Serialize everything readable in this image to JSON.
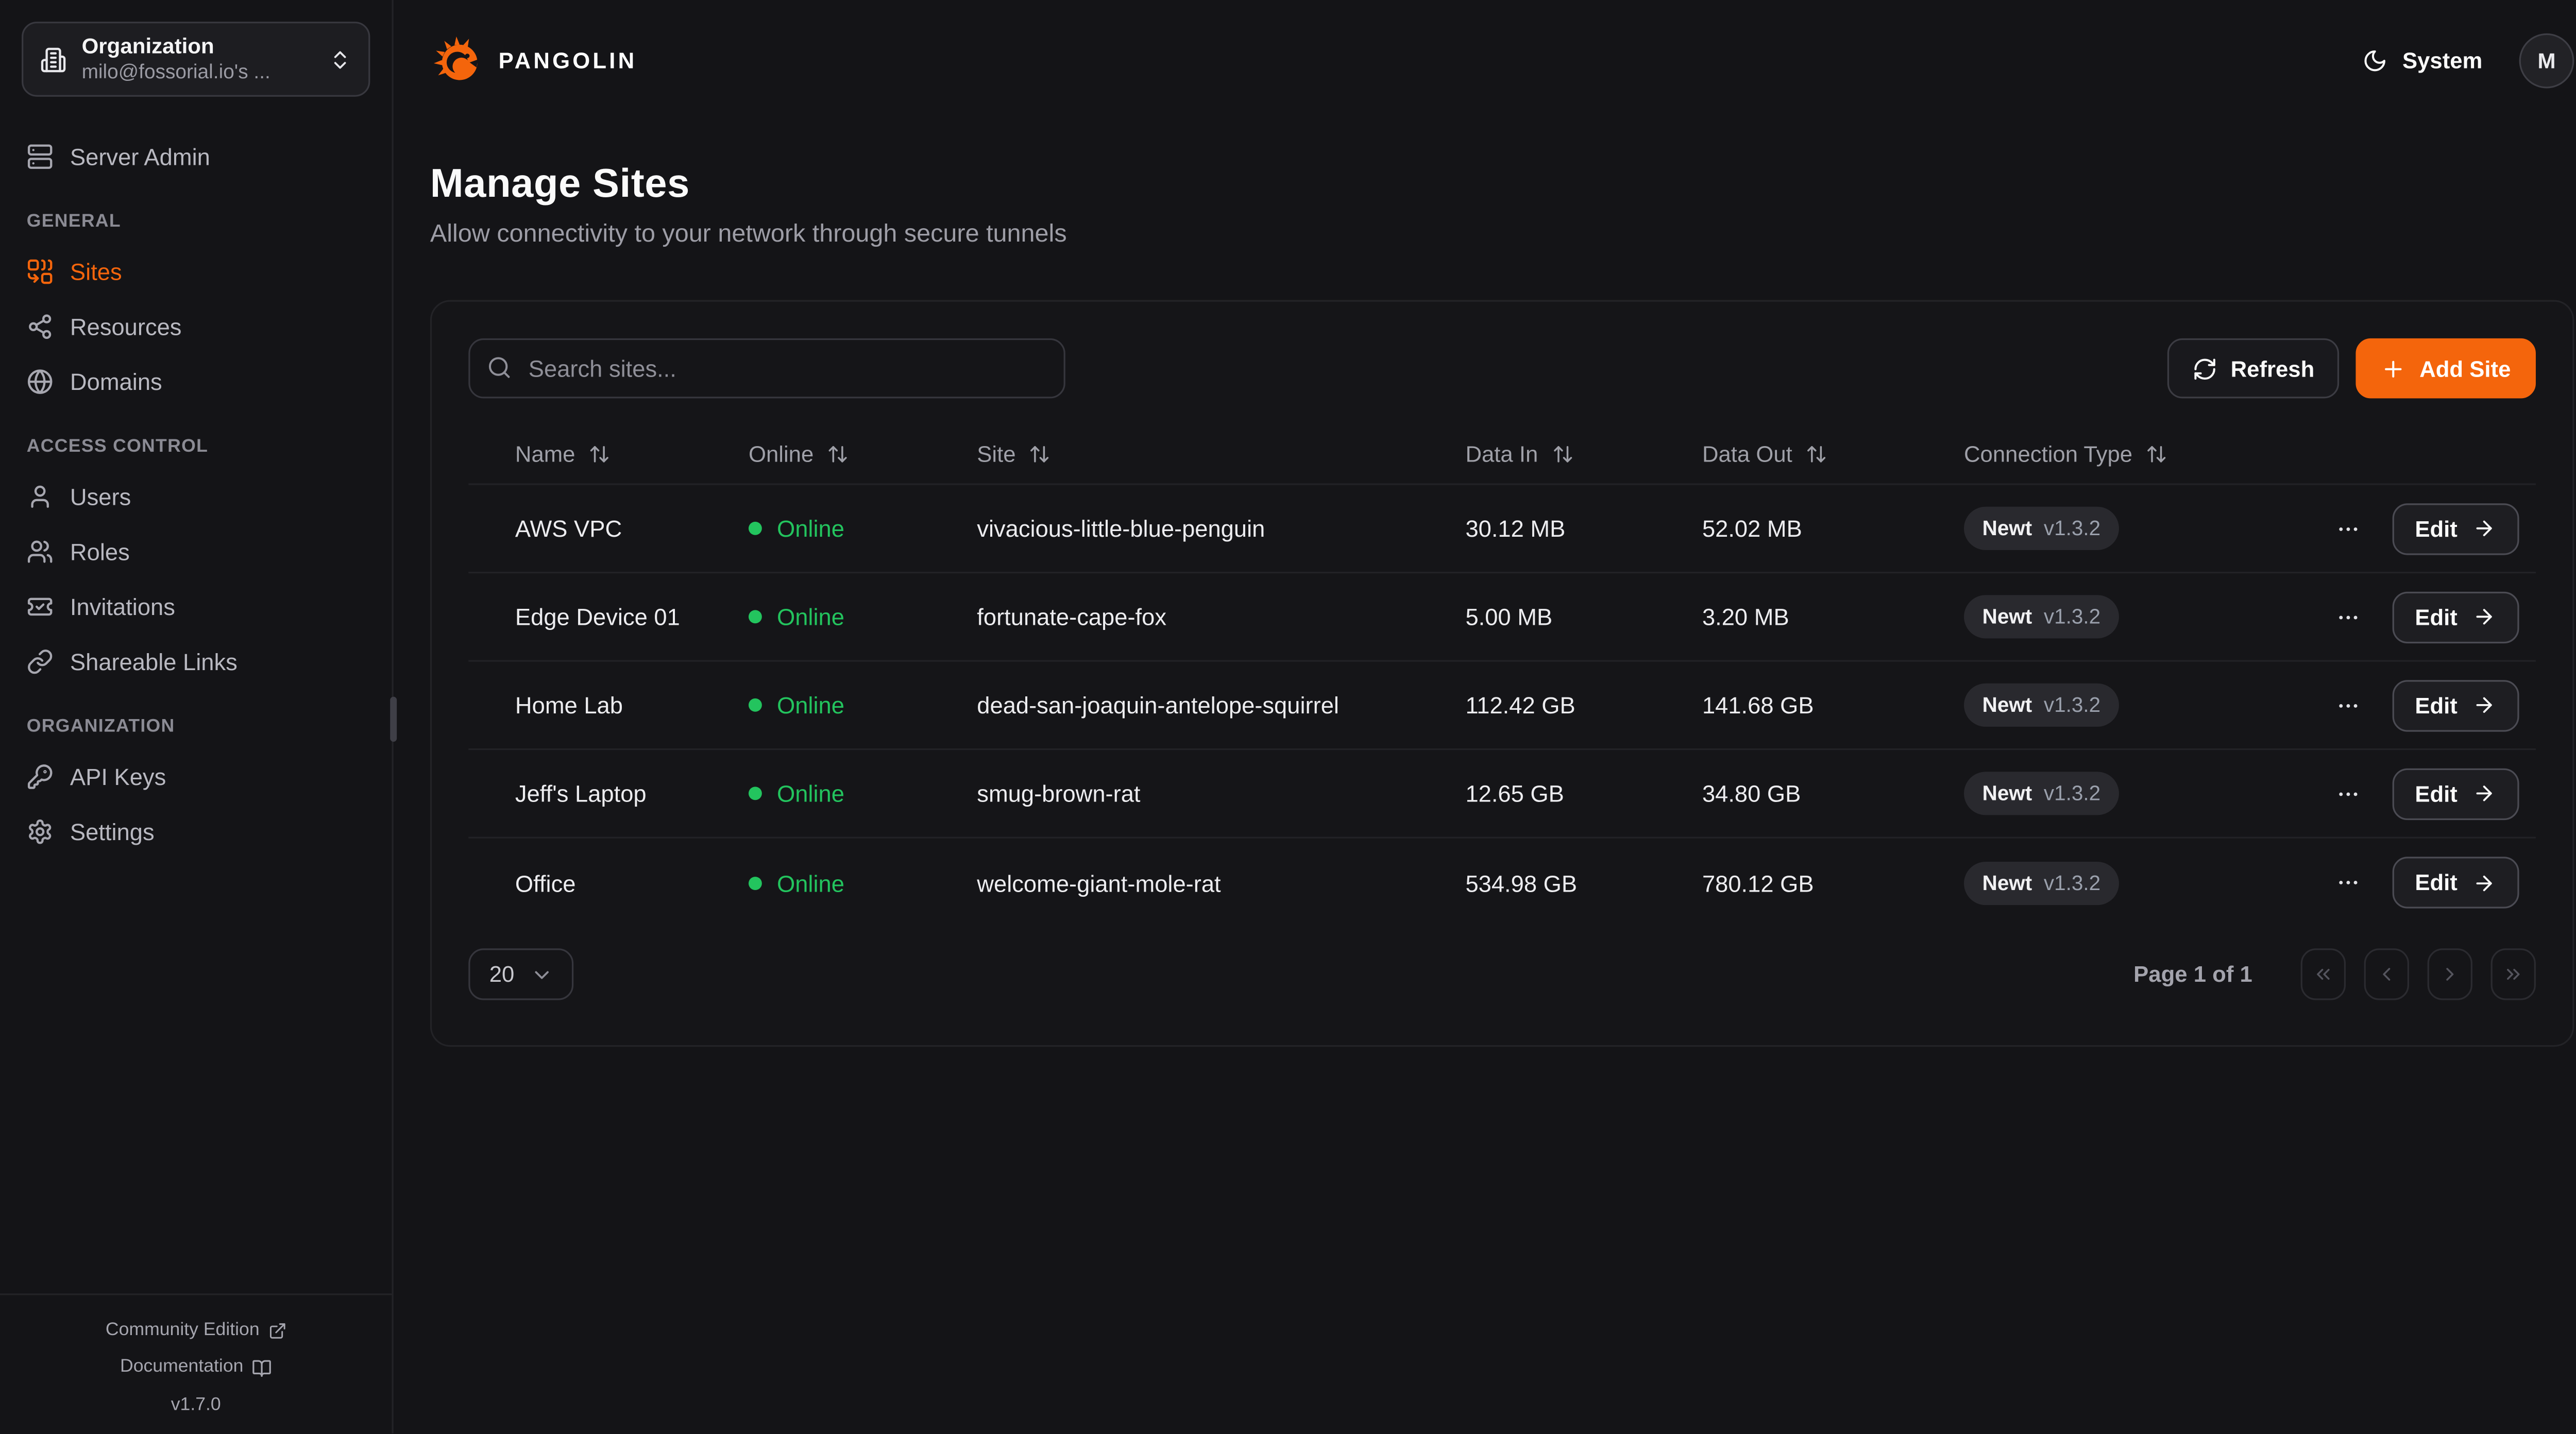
{
  "header": {
    "brand": "PANGOLIN",
    "theme_label": "System",
    "avatar_initial": "M"
  },
  "sidebar": {
    "org_switcher": {
      "label": "Organization",
      "value": "milo@fossorial.io's ..."
    },
    "server_admin_label": "Server Admin",
    "sections": [
      {
        "label": "GENERAL",
        "items": [
          {
            "label": "Sites",
            "icon": "sites",
            "active": true
          },
          {
            "label": "Resources",
            "icon": "resources",
            "active": false
          },
          {
            "label": "Domains",
            "icon": "domains",
            "active": false
          }
        ]
      },
      {
        "label": "ACCESS CONTROL",
        "items": [
          {
            "label": "Users",
            "icon": "user",
            "active": false
          },
          {
            "label": "Roles",
            "icon": "roles",
            "active": false
          },
          {
            "label": "Invitations",
            "icon": "invitations",
            "active": false
          },
          {
            "label": "Shareable Links",
            "icon": "link",
            "active": false
          }
        ]
      },
      {
        "label": "ORGANIZATION",
        "items": [
          {
            "label": "API Keys",
            "icon": "key",
            "active": false
          },
          {
            "label": "Settings",
            "icon": "settings",
            "active": false
          }
        ]
      }
    ],
    "footer": {
      "community_edition": "Community Edition",
      "documentation": "Documentation",
      "version": "v1.7.0"
    }
  },
  "page": {
    "title": "Manage Sites",
    "subtitle": "Allow connectivity to your network through secure tunnels"
  },
  "toolbar": {
    "search_placeholder": "Search sites...",
    "refresh_label": "Refresh",
    "add_site_label": "Add Site"
  },
  "table": {
    "columns": [
      "Name",
      "Online",
      "Site",
      "Data In",
      "Data Out",
      "Connection Type"
    ],
    "row_action_label": "Edit",
    "rows": [
      {
        "name": "AWS VPC",
        "status": "Online",
        "site": "vivacious-little-blue-penguin",
        "data_in": "30.12 MB",
        "data_out": "52.02 MB",
        "connection_type": "Newt",
        "version": "v1.3.2"
      },
      {
        "name": "Edge Device 01",
        "status": "Online",
        "site": "fortunate-cape-fox",
        "data_in": "5.00 MB",
        "data_out": "3.20 MB",
        "connection_type": "Newt",
        "version": "v1.3.2"
      },
      {
        "name": "Home Lab",
        "status": "Online",
        "site": "dead-san-joaquin-antelope-squirrel",
        "data_in": "112.42 GB",
        "data_out": "141.68 GB",
        "connection_type": "Newt",
        "version": "v1.3.2"
      },
      {
        "name": "Jeff's Laptop",
        "status": "Online",
        "site": "smug-brown-rat",
        "data_in": "12.65 GB",
        "data_out": "34.80 GB",
        "connection_type": "Newt",
        "version": "v1.3.2"
      },
      {
        "name": "Office",
        "status": "Online",
        "site": "welcome-giant-mole-rat",
        "data_in": "534.98 GB",
        "data_out": "780.12 GB",
        "connection_type": "Newt",
        "version": "v1.3.2"
      }
    ]
  },
  "pagination": {
    "page_size": "20",
    "status": "Page 1 of 1"
  },
  "colors": {
    "accent": "#f4650c",
    "online": "#23c45e"
  }
}
